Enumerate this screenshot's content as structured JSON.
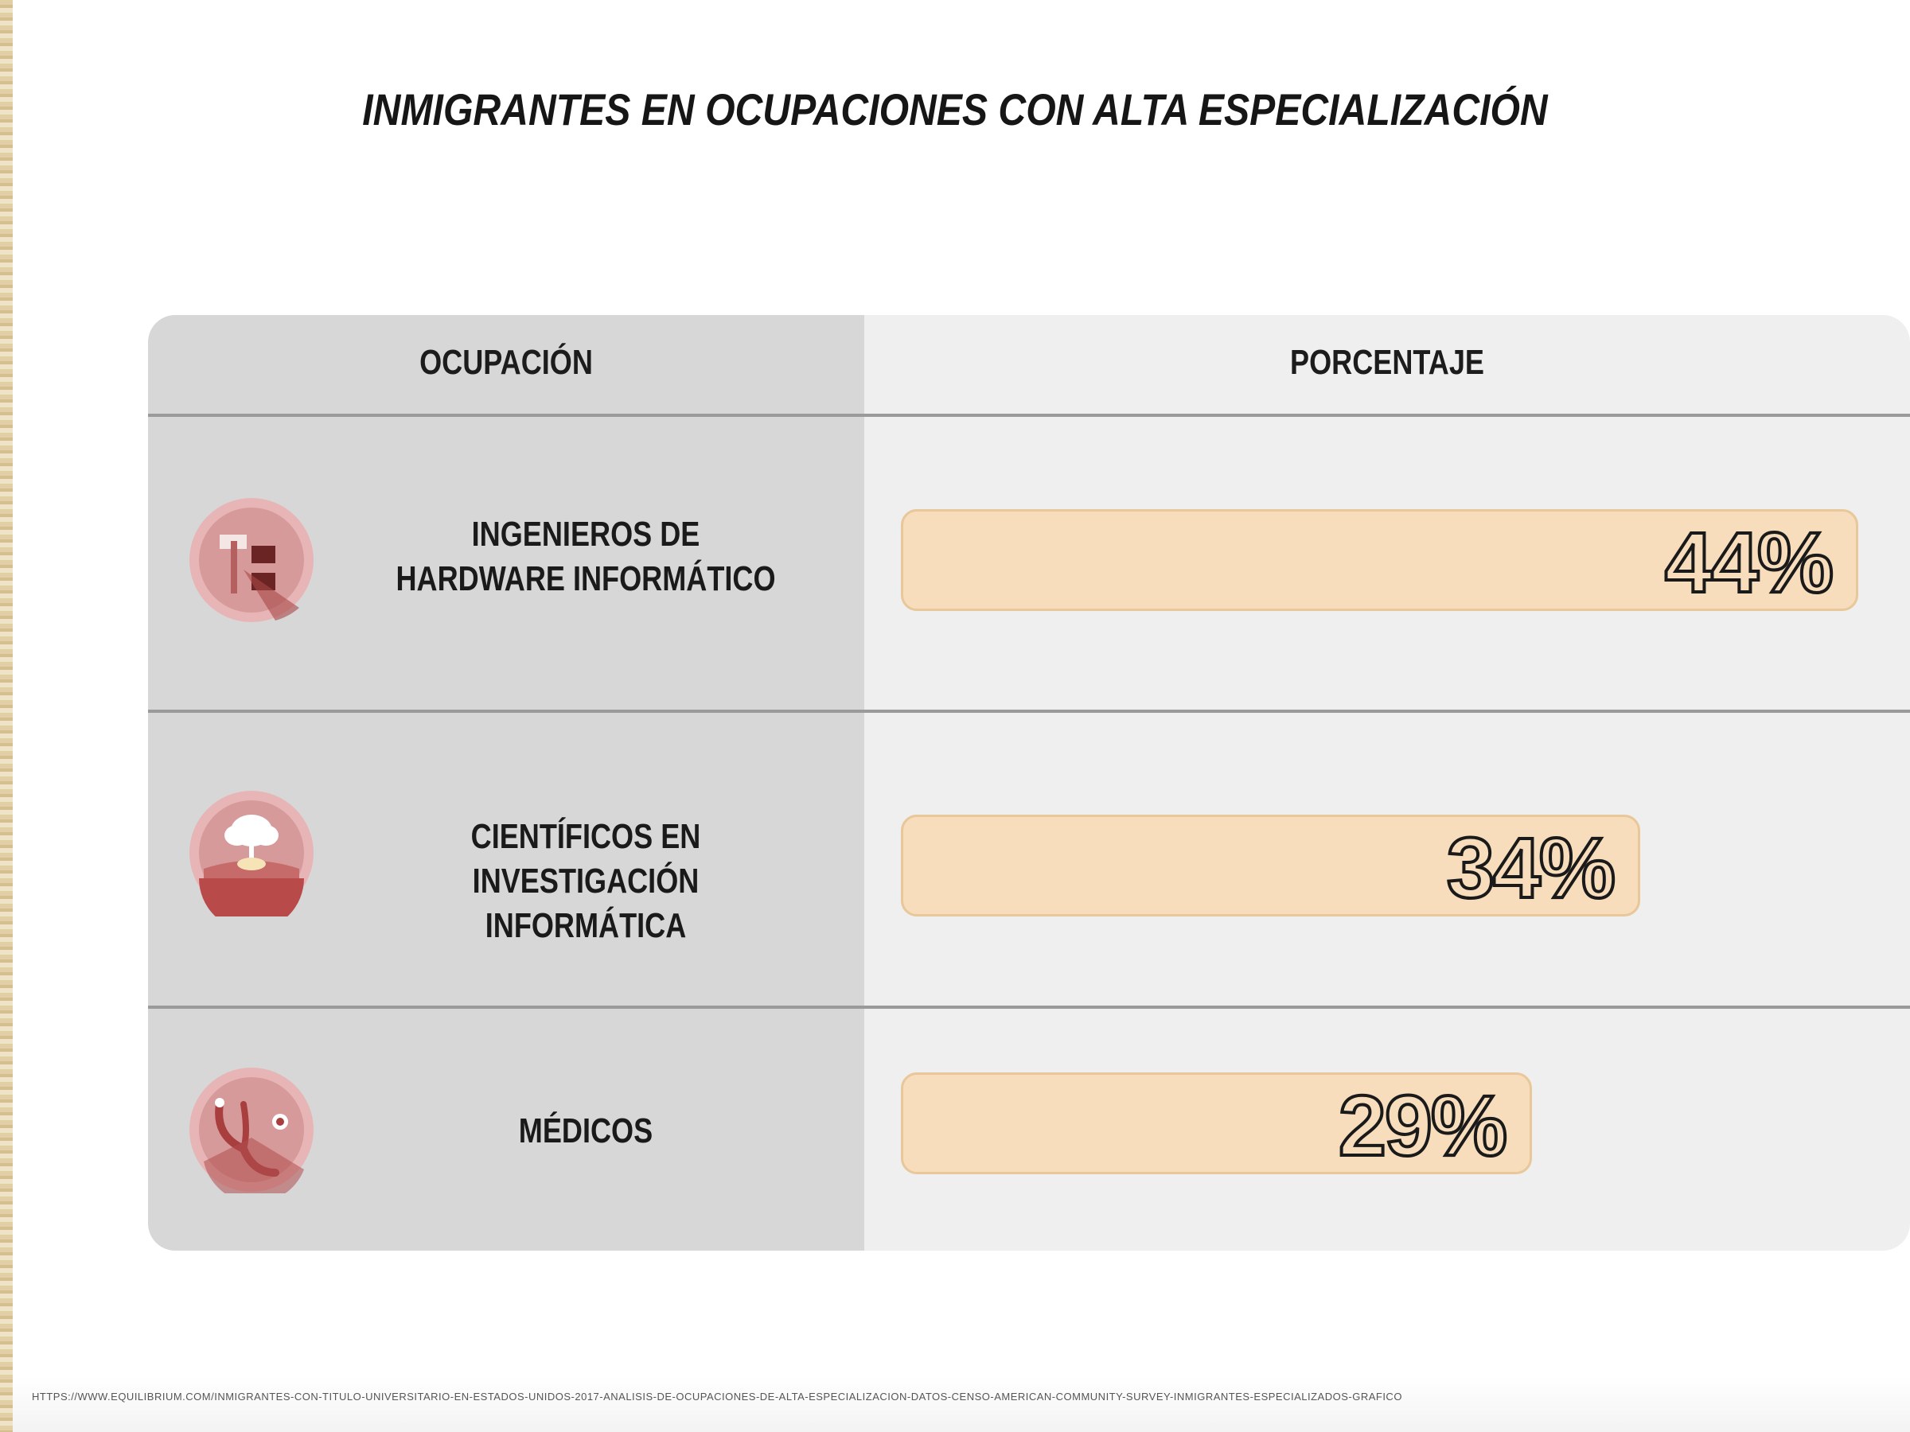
{
  "title": "INMIGRANTES EN OCUPACIONES CON ALTA ESPECIALIZACIÓN",
  "table": {
    "header_occupation": "OCUPACIÓN",
    "header_percentage": "PORCENTAJE"
  },
  "chart_data": {
    "type": "bar",
    "title": "INMIGRANTES EN OCUPACIONES CON ALTA ESPECIALIZACIÓN",
    "xlabel": "OCUPACIÓN",
    "ylabel": "PORCENTAJE",
    "categories": [
      "INGENIEROS DE HARDWARE INFORMÁTICO",
      "CIENTÍFICOS EN INVESTIGACIÓN INFORMÁTICA",
      "MÉDICOS"
    ],
    "values": [
      44,
      34,
      29
    ],
    "value_labels": [
      "44%",
      "34%",
      "29%"
    ],
    "unit": "%",
    "ylim": [
      0,
      45
    ],
    "orientation": "horizontal",
    "grid": false,
    "legend": "none"
  },
  "rows": [
    {
      "label_lines": [
        "INGENIEROS DE",
        "HARDWARE INFORMÁTICO"
      ],
      "icon": "hardware-icon",
      "value": 44,
      "value_label": "44%"
    },
    {
      "label_lines": [
        "CIENTÍFICOS EN",
        "INVESTIGACIÓN INFORMÁTICA"
      ],
      "icon": "cloud-research-icon",
      "value": 34,
      "value_label": "34%"
    },
    {
      "label_lines": [
        "MÉDICOS"
      ],
      "icon": "stethoscope-icon",
      "value": 29,
      "value_label": "29%"
    }
  ],
  "colors": {
    "bar_fill": "#f7ddbb",
    "bar_border": "#e8c79a",
    "icon_circle": "#d79a9a",
    "icon_dark": "#9c3a3a",
    "left_column": "#d7d7d7",
    "right_column": "#efefef"
  },
  "footnote": "HTTPS://WWW.EQUILIBRIUM.COM/INMIGRANTES-CON-TITULO-UNIVERSITARIO-EN-ESTADOS-UNIDOS-2017-ANALISIS-DE-OCUPACIONES-DE-ALTA-ESPECIALIZACION-DATOS-CENSO-AMERICAN-COMMUNITY-SURVEY-INMIGRANTES-ESPECIALIZADOS-GRAFICO"
}
